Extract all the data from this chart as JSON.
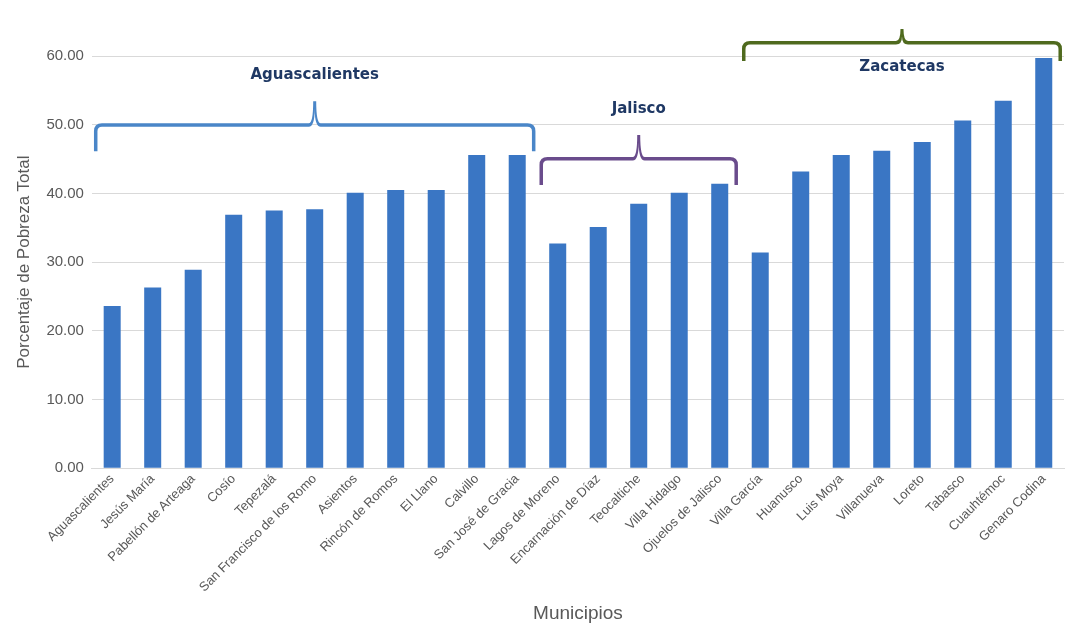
{
  "chart_data": {
    "type": "bar",
    "xlabel": "Municipios",
    "ylabel": "Porcentaje de Pobreza Total",
    "categories": [
      "Aguascalientes",
      "Jesús María",
      "Pabellón de Arteaga",
      "Cosío",
      "Tepezalá",
      "San Francisco de los Romo",
      "Asientos",
      "Rincón de Romos",
      "El Llano",
      "Calvillo",
      "San José de Gracia",
      "Lagos de Moreno",
      "Encarnación de Díaz",
      "Teocaltiche",
      "Villa Hidalgo",
      "Ojuelos de Jalisco",
      "Villa García",
      "Huanusco",
      "Luis Moya",
      "Villanueva",
      "Loreto",
      "Tabasco",
      "Cuauhtémoc",
      "Genaro Codina"
    ],
    "values": [
      23.6,
      26.3,
      28.9,
      36.9,
      37.5,
      37.7,
      40.1,
      40.5,
      40.5,
      45.6,
      45.6,
      32.7,
      35.1,
      38.5,
      40.1,
      41.4,
      31.4,
      43.2,
      45.6,
      46.2,
      47.5,
      50.6,
      53.5,
      59.7
    ],
    "color": "#3a76c4",
    "ylim": [
      0,
      60
    ],
    "yticks": [
      {
        "value": 0,
        "label": "0.00"
      },
      {
        "value": 10,
        "label": "10.00"
      },
      {
        "value": 20,
        "label": "20.00"
      },
      {
        "value": 30,
        "label": "30.00"
      },
      {
        "value": 40,
        "label": "40.00"
      },
      {
        "value": 50,
        "label": "50.00"
      },
      {
        "value": 60,
        "label": "60.00"
      }
    ],
    "grid": "y",
    "annotations": [
      "Aguascalientes",
      "Jalisco",
      "Zacatecas"
    ]
  }
}
